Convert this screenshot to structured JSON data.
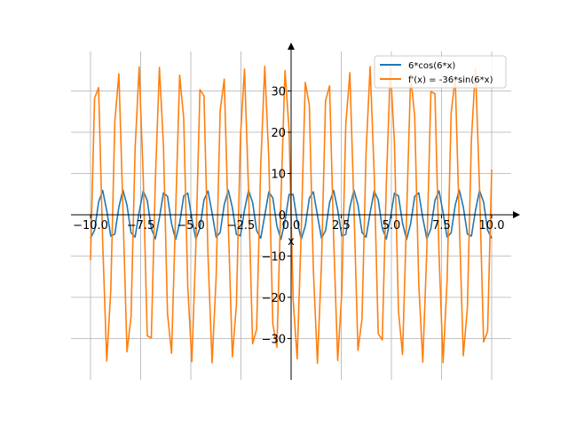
{
  "chart_data": {
    "type": "line",
    "xlabel": "x",
    "ylabel": "",
    "xlim": [
      -10.5,
      10.5
    ],
    "ylim": [
      -40,
      42
    ],
    "xticks": [
      -10.0,
      -7.5,
      -5.0,
      -2.5,
      0.0,
      2.5,
      5.0,
      7.5,
      10.0
    ],
    "xtick_labels": [
      "−10.0",
      "−7.5",
      "−5.0",
      "−2.5",
      "0.0",
      "2.5",
      "5.0",
      "7.5",
      "10.0"
    ],
    "yticks": [
      -30,
      -20,
      -10,
      0,
      10,
      20,
      30
    ],
    "ytick_labels": [
      "−30",
      "−20",
      "−10",
      "0",
      "10",
      "20",
      "30"
    ],
    "grid": true,
    "legend_position": "top-right",
    "x_range": [
      -10,
      10
    ],
    "samples": 100,
    "series": [
      {
        "name": "6*cos(6*x)",
        "color": "#1f77b4",
        "expr": "6*cos(6*x)"
      },
      {
        "name": "f'(x) = -36*sin(6*x)",
        "color": "#ff7f0e",
        "expr": "-36*sin(6*x)"
      }
    ]
  }
}
